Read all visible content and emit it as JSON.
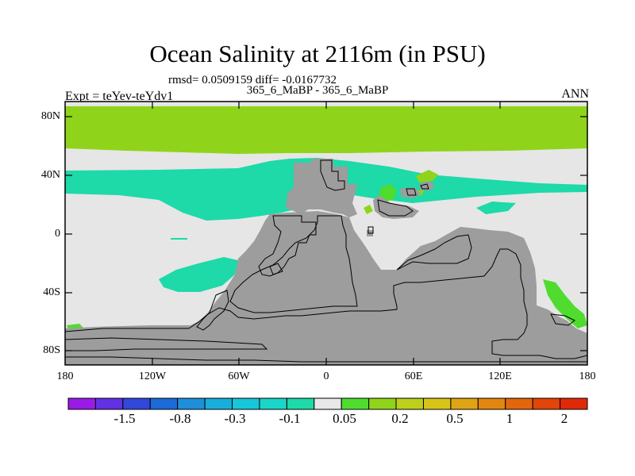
{
  "title": "Ocean Salinity at 2116m (in PSU)",
  "stats_line": "rmsd= 0.0509159 diff= -0.0167732",
  "case_line": "365_6_MaBP - 365_6_MaBP",
  "experiment": "Expt = teYev-teYdv1",
  "season": "ANN",
  "y_axis_labels": [
    "80N",
    "40N",
    "0",
    "40S",
    "80S"
  ],
  "x_axis_labels": [
    "180",
    "120W",
    "60W",
    "0",
    "60E",
    "120E",
    "180"
  ],
  "colorbar": {
    "colors": [
      "#9a1be8",
      "#6231e4",
      "#3248db",
      "#1d6ad9",
      "#1e8fdb",
      "#18aedc",
      "#17c6d8",
      "#1ad6c8",
      "#1ed9a8",
      "#e8e8e8",
      "#4fdc2f",
      "#8fd41a",
      "#bcd01c",
      "#d8c418",
      "#dfa414",
      "#e2860f",
      "#e2660b",
      "#e24409",
      "#e02a07"
    ],
    "tick_labels": [
      "-1.5",
      "-0.8",
      "-0.3",
      "-0.1",
      "0.05",
      "0.2",
      "0.5",
      "1",
      "2"
    ]
  },
  "map_colors": {
    "background": "#e6e6e6",
    "land": "#9d9d9d",
    "green": "#8fd41a",
    "teal": "#1ed9a8",
    "bright_green": "#4fdc2f",
    "frame": "#000000"
  }
}
